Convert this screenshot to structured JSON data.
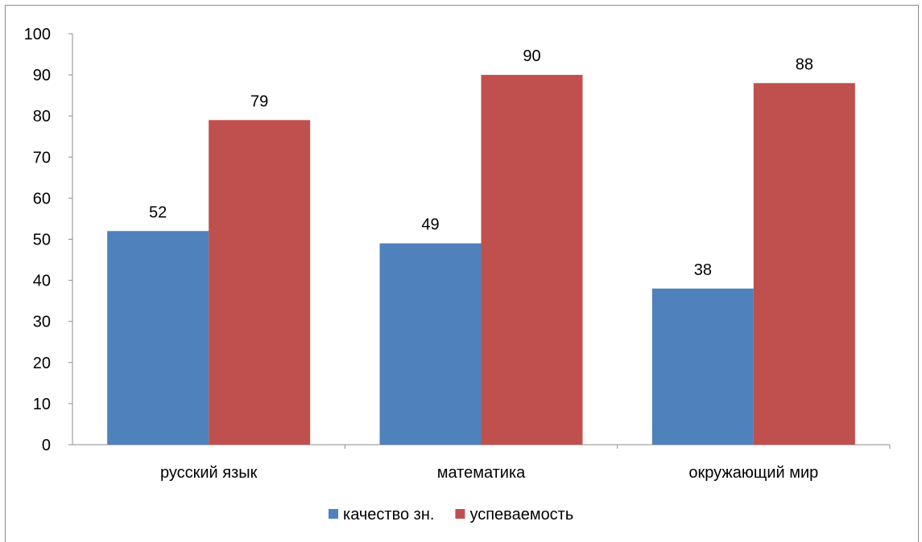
{
  "chart_data": {
    "type": "bar",
    "categories": [
      "русский язык",
      "математика",
      "окружающий мир"
    ],
    "series": [
      {
        "name": "качество зн.",
        "values": [
          52,
          49,
          38
        ],
        "color": "#4F81BD"
      },
      {
        "name": "успеваемость",
        "values": [
          79,
          90,
          88
        ],
        "color": "#C0504D"
      }
    ],
    "ylim": [
      0,
      100
    ],
    "yticks": [
      0,
      10,
      20,
      30,
      40,
      50,
      60,
      70,
      80,
      90,
      100
    ],
    "grid": false,
    "data_labels": true,
    "legend_position": "bottom"
  }
}
